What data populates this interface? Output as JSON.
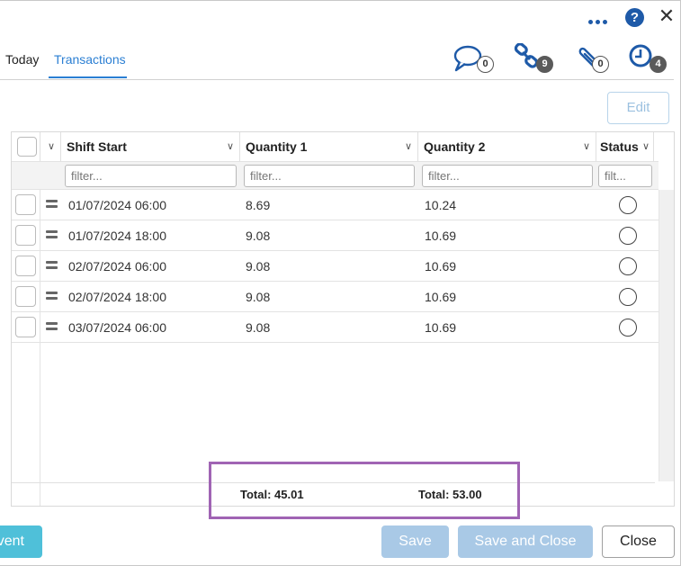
{
  "tabs": [
    {
      "label": "Today",
      "active": false
    },
    {
      "label": "Transactions",
      "active": true
    }
  ],
  "header_icons": [
    {
      "icon": "comment-icon",
      "count": "0"
    },
    {
      "icon": "link-icon",
      "count": "9"
    },
    {
      "icon": "paperclip-icon",
      "count": "0"
    },
    {
      "icon": "clock-icon",
      "count": "4"
    }
  ],
  "toolbar": {
    "edit_label": "Edit"
  },
  "table": {
    "columns": [
      "Shift Start",
      "Quantity 1",
      "Quantity 2",
      "Status"
    ],
    "filter_placeholders": [
      "filter...",
      "filter...",
      "filter...",
      "filt..."
    ],
    "rows": [
      {
        "shift_start": "01/07/2024 06:00",
        "q1": "8.69",
        "q2": "10.24"
      },
      {
        "shift_start": "01/07/2024 18:00",
        "q1": "9.08",
        "q2": "10.69"
      },
      {
        "shift_start": "02/07/2024 06:00",
        "q1": "9.08",
        "q2": "10.69"
      },
      {
        "shift_start": "02/07/2024 18:00",
        "q1": "9.08",
        "q2": "10.69"
      },
      {
        "shift_start": "03/07/2024 06:00",
        "q1": "9.08",
        "q2": "10.69"
      }
    ],
    "totals": {
      "q1": "Total: 45.01",
      "q2": "Total: 53.00"
    }
  },
  "buttons": {
    "event": "vent",
    "save": "Save",
    "save_close": "Save and Close",
    "close": "Close"
  },
  "colors": {
    "accent": "#2b7fd3",
    "icon_blue": "#1e5aa8",
    "highlight": "#a064b4",
    "teal": "#4fc0d9",
    "disabled_blue": "#a9c9e6"
  }
}
